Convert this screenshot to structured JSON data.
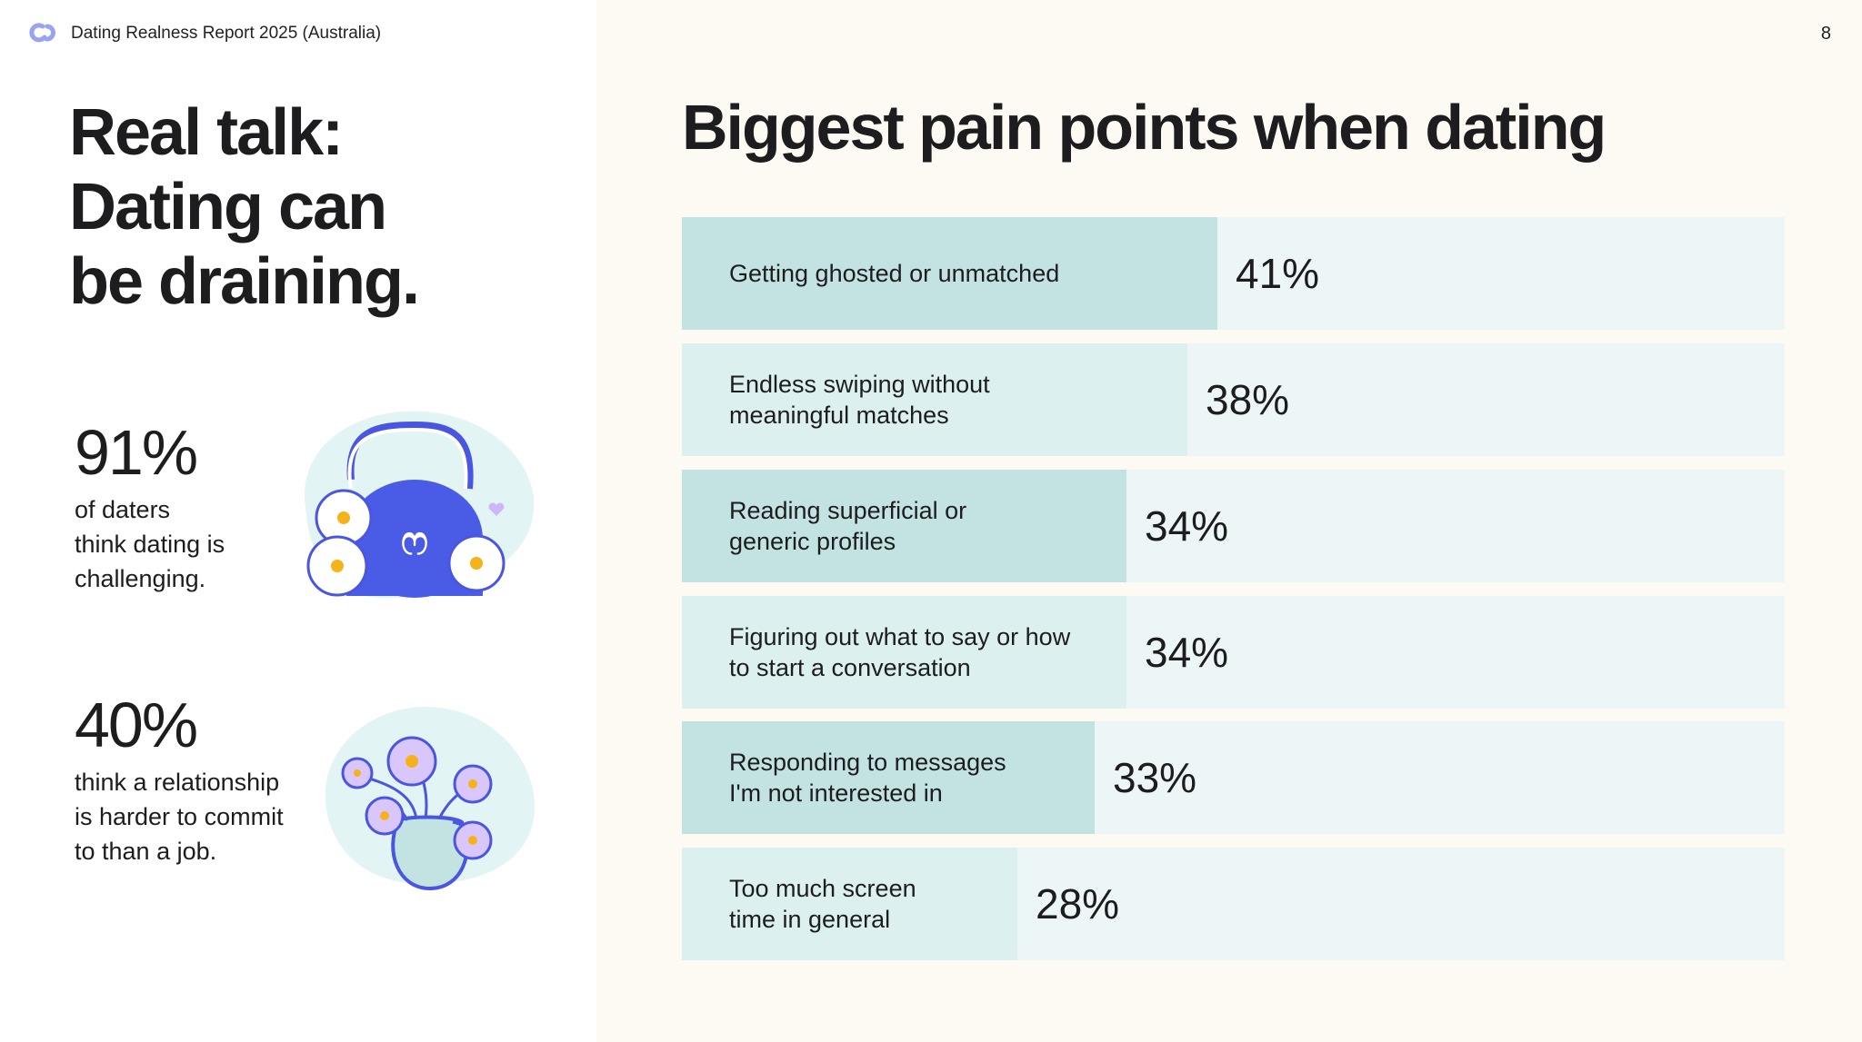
{
  "header": {
    "report_title": "Dating Realness Report 2025 (Australia)",
    "page_number": "8"
  },
  "left": {
    "title_lines": [
      "Real talk:",
      "Dating can",
      "be draining."
    ],
    "stats": [
      {
        "value": "91%",
        "lines": [
          "of daters",
          "think dating is",
          "challenging."
        ]
      },
      {
        "value": "40%",
        "lines": [
          "think a relationship",
          "is harder to commit",
          "to than a job."
        ]
      }
    ]
  },
  "chart_data": {
    "type": "bar",
    "orientation": "horizontal",
    "title": "Biggest pain points when dating",
    "categories": [
      [
        "Getting ghosted or unmatched"
      ],
      [
        "Endless swiping without",
        "meaningful matches"
      ],
      [
        "Reading superficial or",
        "generic profiles"
      ],
      [
        "Figuring out what to say or how",
        "to start a conversation"
      ],
      [
        "Responding to messages",
        "I'm not interested in"
      ],
      [
        "Too much screen",
        "time in general"
      ]
    ],
    "values": [
      41,
      38,
      34,
      34,
      33,
      28
    ],
    "labels": [
      "41%",
      "38%",
      "34%",
      "34%",
      "33%",
      "28%"
    ],
    "colors": {
      "fill_dark": "#c2e3e2",
      "fill_light": "#dcf0ef",
      "track": "#edf6f6"
    }
  }
}
